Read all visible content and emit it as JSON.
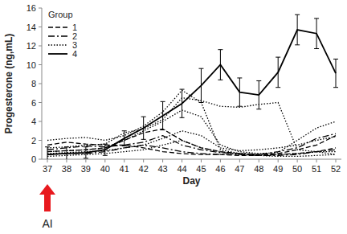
{
  "chart_data": {
    "type": "line",
    "x_label": "Day",
    "y_label": "Progesterone (ng,mL)",
    "legend_title": "Group",
    "legend": "top-left",
    "grid": false,
    "categories": [
      "37",
      "38",
      "39",
      "40",
      "41",
      "42",
      "43",
      "44",
      "45",
      "46",
      "47",
      "48",
      "49",
      "50",
      "51",
      "52"
    ],
    "ylim": [
      0,
      16
    ],
    "yticks": [
      0,
      2,
      4,
      6,
      8,
      10,
      12,
      14,
      16
    ],
    "annotations": [
      {
        "text": "AI",
        "category": "37",
        "color": "#e8191e"
      }
    ],
    "series": [
      {
        "name": "1",
        "color": "#000000",
        "line_style": "dashed",
        "values": [
          0.8,
          0.9,
          1.0,
          1.2,
          2.0,
          2.8,
          3.2,
          2.0,
          1.2,
          0.8,
          0.6,
          0.5,
          0.6,
          1.0,
          1.5,
          2.5
        ]
      },
      {
        "name": "2",
        "color": "#000000",
        "line_style": "dashdot",
        "values": [
          1.0,
          1.2,
          1.4,
          1.3,
          1.5,
          1.8,
          2.5,
          1.5,
          1.0,
          0.7,
          0.6,
          0.5,
          0.8,
          1.2,
          2.2,
          2.7
        ]
      },
      {
        "name": "3",
        "color": "#000000",
        "line_style": "dotted",
        "values": [
          2.0,
          2.2,
          2.3,
          2.0,
          2.5,
          3.5,
          5.0,
          7.3,
          6.0,
          1.0,
          0.6,
          0.5,
          0.5,
          0.6,
          0.8,
          0.8
        ]
      },
      {
        "name": "4",
        "color": "#000000",
        "line_style": "solid",
        "values": [
          0.5,
          0.6,
          0.7,
          1.0,
          2.2,
          3.3,
          4.6,
          5.9,
          7.8,
          10.0,
          7.1,
          6.8,
          9.2,
          13.7,
          13.3,
          9.1
        ],
        "error": [
          0.8,
          0.7,
          0.6,
          0.6,
          0.8,
          1.2,
          1.5,
          1.5,
          1.8,
          1.6,
          1.5,
          1.5,
          1.6,
          1.6,
          1.6,
          1.5
        ]
      },
      {
        "name": "1",
        "color": "#000000",
        "line_style": "dashed",
        "values": [
          1.5,
          1.8,
          1.6,
          1.5,
          1.5,
          1.2,
          0.8,
          0.6,
          0.5,
          0.5,
          0.4,
          0.4,
          0.5,
          0.6,
          0.8,
          1.2
        ]
      },
      {
        "name": "2",
        "color": "#000000",
        "line_style": "dashdot",
        "values": [
          0.5,
          0.6,
          0.6,
          0.8,
          1.2,
          1.5,
          1.2,
          0.8,
          0.6,
          0.5,
          0.5,
          0.4,
          0.4,
          0.5,
          0.8,
          1.0
        ]
      },
      {
        "name": "3",
        "color": "#000000",
        "line_style": "dotted",
        "values": [
          1.2,
          1.3,
          1.5,
          1.6,
          2.8,
          3.2,
          4.2,
          6.5,
          6.2,
          5.6,
          5.5,
          5.8,
          6.0,
          1.0,
          0.8,
          0.5
        ]
      },
      {
        "name": "3",
        "color": "#000000",
        "line_style": "dotted",
        "values": [
          0.8,
          0.9,
          1.0,
          1.2,
          2.0,
          3.0,
          4.0,
          5.2,
          4.5,
          1.5,
          0.8,
          0.6,
          0.7,
          2.0,
          3.3,
          4.0
        ]
      },
      {
        "name": "3",
        "color": "#000000",
        "line_style": "dotted",
        "values": [
          0.3,
          0.4,
          0.5,
          0.6,
          0.8,
          1.0,
          1.5,
          2.0,
          1.2,
          0.8,
          0.5,
          0.4,
          0.3,
          0.3,
          0.4,
          0.5
        ]
      },
      {
        "name": "3",
        "color": "#000000",
        "line_style": "dotted",
        "values": [
          0.6,
          0.7,
          0.8,
          0.9,
          1.2,
          1.5,
          2.2,
          3.0,
          2.5,
          1.2,
          0.9,
          1.0,
          1.2,
          1.5,
          2.0,
          2.4
        ]
      }
    ]
  }
}
